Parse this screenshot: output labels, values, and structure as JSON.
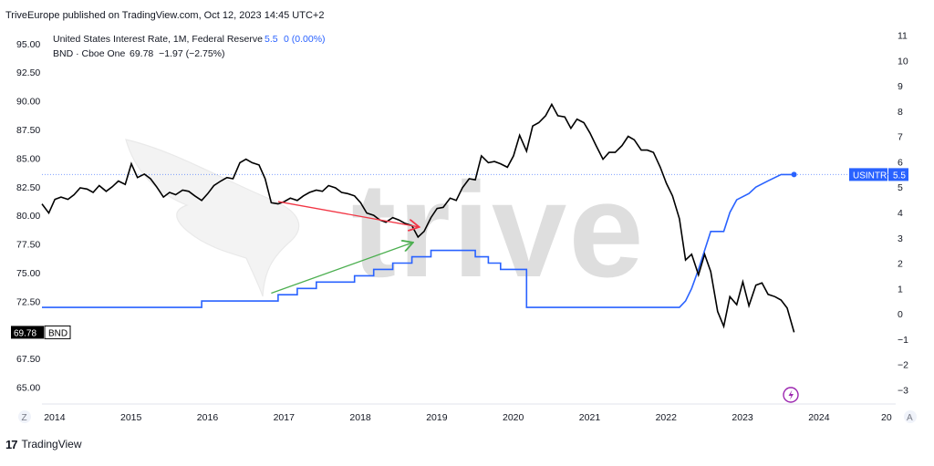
{
  "header": {
    "published": "TriveEurope published on TradingView.com, Oct 12, 2023 14:45 UTC+2"
  },
  "legend": {
    "line1_name": "United States Interest Rate, 1M, Federal Reserve",
    "line1_value": "5.5",
    "line1_change": "0 (0.00%)",
    "line2_name": "BND · Cboe One",
    "line2_values": "69.78  −1.97 (−2.75%)"
  },
  "watermark": "trive",
  "axes": {
    "left_ticks": [
      "95.00",
      "92.50",
      "90.00",
      "87.50",
      "85.00",
      "82.50",
      "80.00",
      "77.50",
      "75.00",
      "72.50",
      "67.50",
      "65.00"
    ],
    "right_ticks": [
      "11",
      "10",
      "9",
      "8",
      "7",
      "6",
      "5",
      "4",
      "3",
      "2",
      "1",
      "0",
      "−1",
      "−2",
      "−3"
    ],
    "x_ticks": [
      "2014",
      "2015",
      "2016",
      "2017",
      "2018",
      "2019",
      "2020",
      "2021",
      "2022",
      "2023",
      "2024",
      "20"
    ],
    "z_button": "Z",
    "a_button": "A"
  },
  "price_tags": {
    "bnd_value": "69.78",
    "bnd_label": "BND",
    "usintr_label": "USINTR",
    "usintr_value": "5.5"
  },
  "footer": {
    "brand": "TradingView"
  },
  "colors": {
    "bnd": "#000000",
    "usintr": "#2962ff",
    "red_arrow": "#f23645",
    "green_arrow": "#4caf50",
    "bolt": "#9c27b0"
  },
  "chart_data": {
    "type": "line",
    "x_range": [
      2013.83,
      2025.0
    ],
    "series": [
      {
        "name": "BND",
        "axis": "left",
        "ylim": [
          64.0,
          96.5
        ],
        "points": [
          [
            2013.83,
            81.0
          ],
          [
            2013.92,
            80.2
          ],
          [
            2014.0,
            81.4
          ],
          [
            2014.08,
            81.6
          ],
          [
            2014.17,
            81.4
          ],
          [
            2014.25,
            81.8
          ],
          [
            2014.33,
            82.4
          ],
          [
            2014.42,
            82.3
          ],
          [
            2014.5,
            82.0
          ],
          [
            2014.58,
            82.6
          ],
          [
            2014.67,
            82.1
          ],
          [
            2014.75,
            82.5
          ],
          [
            2014.83,
            83.0
          ],
          [
            2014.92,
            82.7
          ],
          [
            2015.0,
            84.5
          ],
          [
            2015.08,
            83.3
          ],
          [
            2015.17,
            83.6
          ],
          [
            2015.25,
            83.2
          ],
          [
            2015.33,
            82.5
          ],
          [
            2015.42,
            81.6
          ],
          [
            2015.5,
            82.0
          ],
          [
            2015.58,
            81.8
          ],
          [
            2015.67,
            82.2
          ],
          [
            2015.75,
            82.1
          ],
          [
            2015.83,
            81.7
          ],
          [
            2015.92,
            81.3
          ],
          [
            2016.0,
            81.9
          ],
          [
            2016.08,
            82.6
          ],
          [
            2016.17,
            83.0
          ],
          [
            2016.25,
            83.3
          ],
          [
            2016.33,
            83.2
          ],
          [
            2016.42,
            84.6
          ],
          [
            2016.5,
            84.9
          ],
          [
            2016.58,
            84.6
          ],
          [
            2016.67,
            84.4
          ],
          [
            2016.75,
            83.2
          ],
          [
            2016.83,
            81.1
          ],
          [
            2016.92,
            81.0
          ],
          [
            2017.0,
            81.2
          ],
          [
            2017.08,
            81.5
          ],
          [
            2017.17,
            81.3
          ],
          [
            2017.25,
            81.7
          ],
          [
            2017.33,
            82.0
          ],
          [
            2017.42,
            82.2
          ],
          [
            2017.5,
            82.1
          ],
          [
            2017.58,
            82.6
          ],
          [
            2017.67,
            82.4
          ],
          [
            2017.75,
            82.0
          ],
          [
            2017.83,
            81.9
          ],
          [
            2017.92,
            81.7
          ],
          [
            2018.0,
            81.1
          ],
          [
            2018.08,
            80.2
          ],
          [
            2018.17,
            80.0
          ],
          [
            2018.25,
            79.6
          ],
          [
            2018.33,
            79.4
          ],
          [
            2018.42,
            79.8
          ],
          [
            2018.5,
            79.6
          ],
          [
            2018.58,
            79.3
          ],
          [
            2018.67,
            79.1
          ],
          [
            2018.75,
            78.1
          ],
          [
            2018.83,
            78.6
          ],
          [
            2018.92,
            79.8
          ],
          [
            2019.0,
            80.6
          ],
          [
            2019.08,
            80.7
          ],
          [
            2019.17,
            81.5
          ],
          [
            2019.25,
            81.3
          ],
          [
            2019.33,
            82.4
          ],
          [
            2019.42,
            83.2
          ],
          [
            2019.5,
            83.1
          ],
          [
            2019.58,
            85.2
          ],
          [
            2019.67,
            84.6
          ],
          [
            2019.75,
            84.7
          ],
          [
            2019.83,
            84.5
          ],
          [
            2019.92,
            84.2
          ],
          [
            2020.0,
            85.2
          ],
          [
            2020.08,
            87.0
          ],
          [
            2020.17,
            85.6
          ],
          [
            2020.25,
            87.8
          ],
          [
            2020.33,
            88.1
          ],
          [
            2020.42,
            88.7
          ],
          [
            2020.5,
            89.7
          ],
          [
            2020.58,
            88.7
          ],
          [
            2020.67,
            88.6
          ],
          [
            2020.75,
            87.6
          ],
          [
            2020.83,
            88.4
          ],
          [
            2020.92,
            88.1
          ],
          [
            2021.0,
            87.2
          ],
          [
            2021.08,
            86.1
          ],
          [
            2021.17,
            84.9
          ],
          [
            2021.25,
            85.5
          ],
          [
            2021.33,
            85.5
          ],
          [
            2021.42,
            86.1
          ],
          [
            2021.5,
            86.9
          ],
          [
            2021.58,
            86.6
          ],
          [
            2021.67,
            85.7
          ],
          [
            2021.75,
            85.7
          ],
          [
            2021.83,
            85.5
          ],
          [
            2021.92,
            84.2
          ],
          [
            2022.0,
            82.8
          ],
          [
            2022.08,
            81.7
          ],
          [
            2022.17,
            79.7
          ],
          [
            2022.25,
            76.1
          ],
          [
            2022.33,
            76.6
          ],
          [
            2022.42,
            74.8
          ],
          [
            2022.5,
            76.6
          ],
          [
            2022.58,
            75.1
          ],
          [
            2022.67,
            71.6
          ],
          [
            2022.75,
            70.3
          ],
          [
            2022.83,
            72.9
          ],
          [
            2022.92,
            72.2
          ],
          [
            2023.0,
            74.2
          ],
          [
            2023.08,
            72.1
          ],
          [
            2023.17,
            73.9
          ],
          [
            2023.25,
            74.1
          ],
          [
            2023.33,
            73.1
          ],
          [
            2023.42,
            72.9
          ],
          [
            2023.5,
            72.6
          ],
          [
            2023.58,
            71.9
          ],
          [
            2023.67,
            69.78
          ]
        ]
      },
      {
        "name": "USINTR",
        "axis": "right",
        "ylim": [
          -3.35,
          11.35
        ],
        "points": [
          [
            2013.83,
            0.25
          ],
          [
            2015.92,
            0.25
          ],
          [
            2015.92,
            0.5
          ],
          [
            2016.92,
            0.5
          ],
          [
            2016.92,
            0.75
          ],
          [
            2017.17,
            0.75
          ],
          [
            2017.17,
            1.0
          ],
          [
            2017.42,
            1.0
          ],
          [
            2017.42,
            1.25
          ],
          [
            2017.92,
            1.25
          ],
          [
            2017.92,
            1.5
          ],
          [
            2018.17,
            1.5
          ],
          [
            2018.17,
            1.75
          ],
          [
            2018.42,
            1.75
          ],
          [
            2018.42,
            2.0
          ],
          [
            2018.67,
            2.0
          ],
          [
            2018.67,
            2.25
          ],
          [
            2018.92,
            2.25
          ],
          [
            2018.92,
            2.5
          ],
          [
            2019.5,
            2.5
          ],
          [
            2019.5,
            2.25
          ],
          [
            2019.67,
            2.25
          ],
          [
            2019.67,
            2.0
          ],
          [
            2019.83,
            2.0
          ],
          [
            2019.83,
            1.75
          ],
          [
            2020.17,
            1.75
          ],
          [
            2020.17,
            0.25
          ],
          [
            2022.17,
            0.25
          ],
          [
            2022.25,
            0.5
          ],
          [
            2022.33,
            1.0
          ],
          [
            2022.42,
            1.75
          ],
          [
            2022.5,
            2.5
          ],
          [
            2022.58,
            3.25
          ],
          [
            2022.75,
            3.25
          ],
          [
            2022.83,
            4.0
          ],
          [
            2022.92,
            4.5
          ],
          [
            2023.08,
            4.75
          ],
          [
            2023.17,
            5.0
          ],
          [
            2023.33,
            5.25
          ],
          [
            2023.5,
            5.5
          ],
          [
            2023.67,
            5.5
          ]
        ]
      }
    ],
    "annotations": [
      {
        "type": "arrow",
        "color": "red",
        "from": [
          2016.92,
          81.2
        ],
        "to": [
          2018.75,
          79.0
        ],
        "axis": "left"
      },
      {
        "type": "arrow",
        "color": "green",
        "from": [
          2016.83,
          73.2
        ],
        "to": [
          2018.67,
          77.6
        ],
        "axis": "left"
      }
    ]
  }
}
